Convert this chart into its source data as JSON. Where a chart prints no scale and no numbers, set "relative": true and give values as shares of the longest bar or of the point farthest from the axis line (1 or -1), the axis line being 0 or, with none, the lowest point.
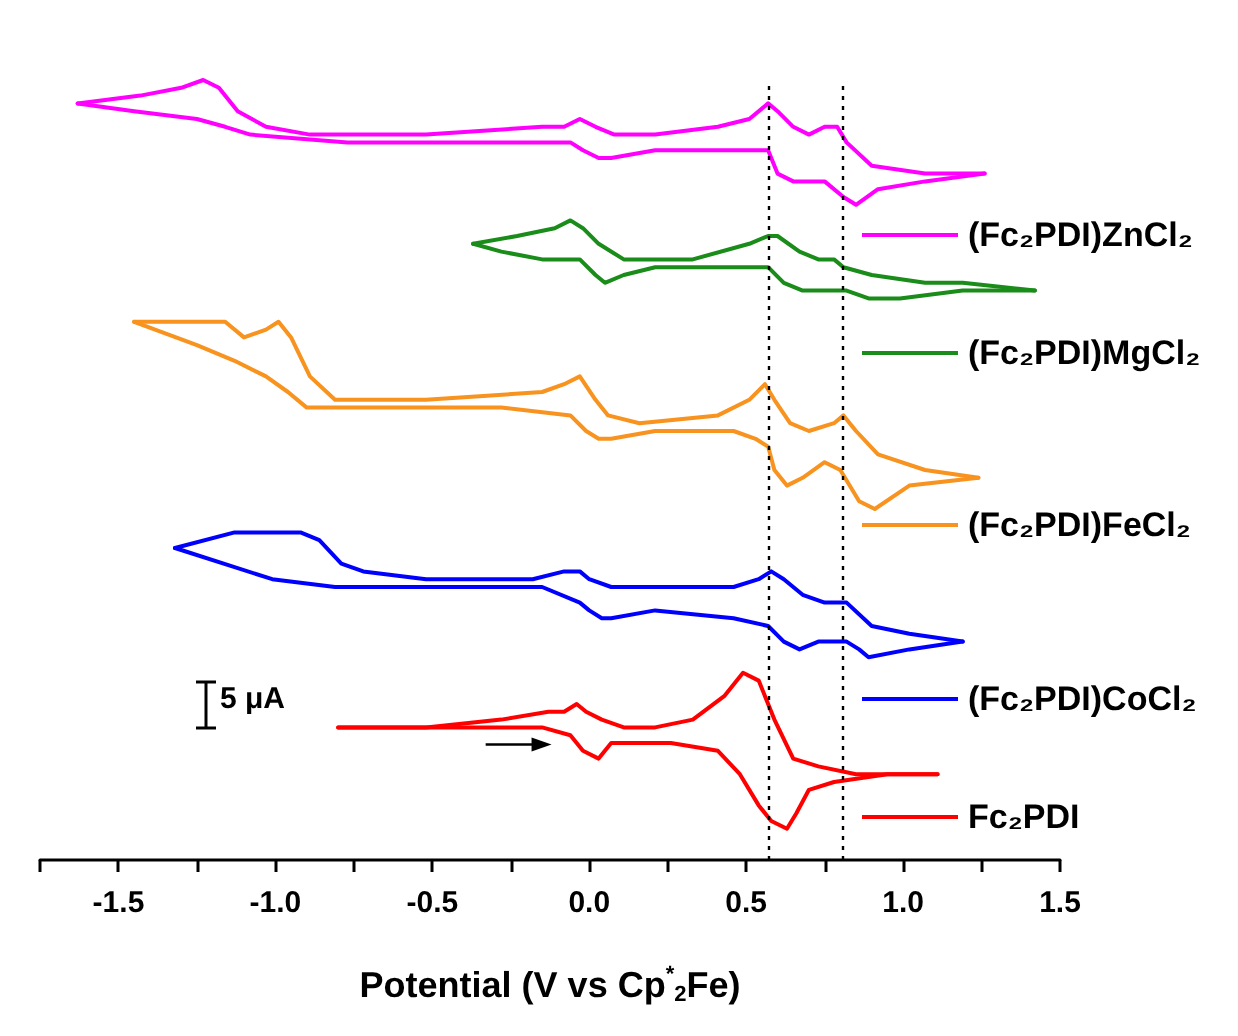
{
  "chart_data": {
    "type": "line",
    "relative": true,
    "xlabel": "Potential (V vs Cp$^{*}$$_{2}$Fe)",
    "xlim": [
      -1.75,
      1.5
    ],
    "xticks": [
      {
        "value": -1.75,
        "label": null
      },
      {
        "value": -1.5,
        "label": "-1.5"
      },
      {
        "value": -1.25,
        "label": null
      },
      {
        "value": -1,
        "label": "-1.0"
      },
      {
        "value": -0.75,
        "label": null
      },
      {
        "value": -0.5,
        "label": "-0.5"
      },
      {
        "value": -0.25,
        "label": null
      },
      {
        "value": 0,
        "label": "0.0"
      },
      {
        "value": 0.25,
        "label": null
      },
      {
        "value": 0.5,
        "label": "0.5"
      },
      {
        "value": 0.75,
        "label": null
      },
      {
        "value": 1,
        "label": "1.0"
      },
      {
        "value": 1.25,
        "label": null
      },
      {
        "value": 1.5,
        "label": "1.5"
      }
    ],
    "tick_labels": "x",
    "grid": false,
    "legend": "right",
    "marker": "none",
    "line_style": "solid",
    "annotations": [
      "5 μA"
    ],
    "ref_lines": [
      {
        "axis": "x",
        "value": 0.57,
        "color": "#000000",
        "line_style": "dotted"
      },
      {
        "axis": "x",
        "value": 0.81,
        "color": "#000000",
        "line_style": "dotted"
      }
    ],
    "series": [
      {
        "name": "(Fc₂PDI)ZnCl₂",
        "color": "#ff00ff",
        "x": [
          -1.63,
          -1.43,
          -1.3,
          -1.23,
          -1.18,
          -1.12,
          -1.03,
          -0.89,
          -0.52,
          -0.15,
          -0.08,
          -0.03,
          0.02,
          0.08,
          0.21,
          0.41,
          0.51,
          0.57,
          0.6,
          0.65,
          0.7,
          0.75,
          0.79,
          0.82,
          0.9,
          1.07,
          1.26
        ],
        "values": [
          0.97,
          0.98,
          0.99,
          1.0,
          0.99,
          0.96,
          0.94,
          0.93,
          0.93,
          0.94,
          0.94,
          0.95,
          0.94,
          0.93,
          0.93,
          0.94,
          0.95,
          0.97,
          0.96,
          0.94,
          0.93,
          0.94,
          0.94,
          0.92,
          0.89,
          0.88,
          0.88
        ]
      },
      {
        "color": "#ff00ff",
        "x": [
          -1.63,
          -1.45,
          -1.25,
          -1.16,
          -1.08,
          -0.77,
          -0.28,
          -0.06,
          -0.02,
          0.03,
          0.07,
          0.21,
          0.46,
          0.57,
          0.6,
          0.65,
          0.7,
          0.75,
          0.81,
          0.85,
          0.92,
          1.07,
          1.26
        ],
        "values": [
          0.97,
          0.96,
          0.95,
          0.94,
          0.93,
          0.92,
          0.92,
          0.92,
          0.91,
          0.9,
          0.9,
          0.91,
          0.91,
          0.91,
          0.88,
          0.87,
          0.87,
          0.87,
          0.85,
          0.84,
          0.86,
          0.87,
          0.88
        ]
      },
      {
        "name": "(Fc₂PDI)MgCl₂",
        "color": "#1a8c1a",
        "x": [
          -0.37,
          -0.23,
          -0.11,
          -0.06,
          -0.02,
          0.03,
          0.11,
          0.33,
          0.51,
          0.57,
          0.6,
          0.67,
          0.73,
          0.78,
          0.81,
          0.9,
          1.07,
          1.19,
          1.42
        ],
        "values": [
          0.79,
          0.8,
          0.81,
          0.82,
          0.81,
          0.79,
          0.77,
          0.77,
          0.79,
          0.8,
          0.8,
          0.78,
          0.77,
          0.77,
          0.76,
          0.75,
          0.74,
          0.74,
          0.73
        ]
      },
      {
        "color": "#1a8c1a",
        "x": [
          -0.37,
          -0.28,
          -0.15,
          -0.03,
          0.02,
          0.05,
          0.11,
          0.21,
          0.46,
          0.57,
          0.62,
          0.68,
          0.74,
          0.78,
          0.82,
          0.89,
          0.99,
          1.19,
          1.42
        ],
        "values": [
          0.79,
          0.78,
          0.77,
          0.77,
          0.75,
          0.74,
          0.75,
          0.76,
          0.76,
          0.76,
          0.74,
          0.73,
          0.73,
          0.73,
          0.73,
          0.72,
          0.72,
          0.73,
          0.73
        ]
      },
      {
        "name": "(Fc₂PDI)FeCl₂",
        "color": "#f7931e",
        "x": [
          -1.45,
          -1.25,
          -1.16,
          -1.1,
          -1.03,
          -0.99,
          -0.95,
          -0.89,
          -0.81,
          -0.52,
          -0.15,
          -0.08,
          -0.03,
          0.02,
          0.06,
          0.16,
          0.41,
          0.51,
          0.56,
          0.59,
          0.64,
          0.7,
          0.78,
          0.81,
          0.85,
          0.92,
          1.07,
          1.24
        ],
        "values": [
          0.69,
          0.69,
          0.69,
          0.67,
          0.68,
          0.69,
          0.67,
          0.62,
          0.59,
          0.59,
          0.6,
          0.61,
          0.62,
          0.59,
          0.57,
          0.56,
          0.57,
          0.59,
          0.61,
          0.59,
          0.56,
          0.55,
          0.56,
          0.57,
          0.55,
          0.52,
          0.5,
          0.49
        ]
      },
      {
        "color": "#f7931e",
        "x": [
          -1.45,
          -1.25,
          -1.13,
          -1.03,
          -0.96,
          -0.9,
          -0.81,
          -0.52,
          -0.28,
          -0.06,
          -0.01,
          0.03,
          0.07,
          0.21,
          0.46,
          0.53,
          0.57,
          0.59,
          0.63,
          0.68,
          0.75,
          0.8,
          0.86,
          0.91,
          1.02,
          1.24
        ],
        "values": [
          0.69,
          0.66,
          0.64,
          0.62,
          0.6,
          0.58,
          0.58,
          0.58,
          0.58,
          0.57,
          0.55,
          0.54,
          0.54,
          0.55,
          0.55,
          0.54,
          0.53,
          0.5,
          0.48,
          0.49,
          0.51,
          0.5,
          0.46,
          0.45,
          0.48,
          0.49
        ]
      },
      {
        "name": "(Fc₂PDI)CoCl₂",
        "color": "#0000ff",
        "x": [
          -1.32,
          -1.13,
          -1.01,
          -0.92,
          -0.86,
          -0.79,
          -0.72,
          -0.52,
          -0.18,
          -0.08,
          -0.03,
          0.0,
          0.07,
          0.21,
          0.46,
          0.54,
          0.58,
          0.62,
          0.68,
          0.75,
          0.79,
          0.82,
          0.9,
          1.02,
          1.19
        ],
        "values": [
          0.4,
          0.42,
          0.42,
          0.42,
          0.41,
          0.38,
          0.37,
          0.36,
          0.36,
          0.37,
          0.37,
          0.36,
          0.35,
          0.35,
          0.35,
          0.36,
          0.37,
          0.36,
          0.34,
          0.33,
          0.33,
          0.33,
          0.3,
          0.29,
          0.28
        ]
      },
      {
        "color": "#0000ff",
        "x": [
          -1.32,
          -1.01,
          -0.81,
          -0.52,
          -0.15,
          -0.03,
          0.0,
          0.04,
          0.07,
          0.21,
          0.46,
          0.57,
          0.62,
          0.67,
          0.73,
          0.78,
          0.82,
          0.86,
          0.89,
          1.02,
          1.19
        ],
        "values": [
          0.4,
          0.36,
          0.35,
          0.35,
          0.35,
          0.33,
          0.32,
          0.31,
          0.31,
          0.32,
          0.31,
          0.3,
          0.28,
          0.27,
          0.28,
          0.28,
          0.28,
          0.27,
          0.26,
          0.27,
          0.28
        ]
      },
      {
        "name": "Fc₂PDI",
        "color": "#ff0000",
        "x": [
          -0.8,
          -0.52,
          -0.28,
          -0.13,
          -0.08,
          -0.04,
          -0.01,
          0.04,
          0.11,
          0.21,
          0.33,
          0.43,
          0.49,
          0.54,
          0.59,
          0.65,
          0.73,
          0.85,
          1.11
        ],
        "values": [
          0.17,
          0.17,
          0.18,
          0.19,
          0.19,
          0.2,
          0.19,
          0.18,
          0.17,
          0.17,
          0.18,
          0.21,
          0.24,
          0.23,
          0.18,
          0.13,
          0.12,
          0.11,
          0.11
        ]
      },
      {
        "color": "#ff0000",
        "x": [
          -0.8,
          -0.4,
          -0.15,
          -0.06,
          -0.02,
          0.03,
          0.07,
          0.26,
          0.41,
          0.48,
          0.54,
          0.58,
          0.63,
          0.66,
          0.7,
          0.78,
          0.95,
          1.11
        ],
        "values": [
          0.17,
          0.17,
          0.17,
          0.16,
          0.14,
          0.13,
          0.15,
          0.15,
          0.14,
          0.11,
          0.07,
          0.05,
          0.04,
          0.06,
          0.09,
          0.1,
          0.11,
          0.11
        ]
      }
    ]
  }
}
